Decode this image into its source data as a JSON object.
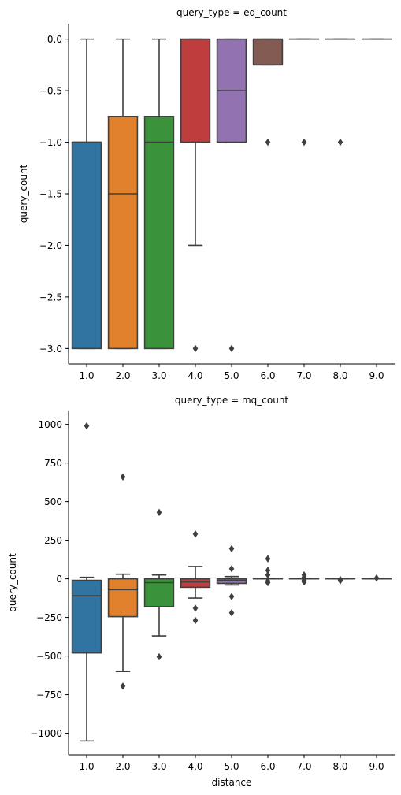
{
  "chart_data": [
    {
      "type": "box",
      "title": "query_type = eq_count",
      "xlabel": "",
      "ylabel": "query_count",
      "categories": [
        "1.0",
        "2.0",
        "3.0",
        "4.0",
        "5.0",
        "6.0",
        "7.0",
        "8.0",
        "9.0"
      ],
      "yticks": [
        0.0,
        -0.5,
        -1.0,
        -1.5,
        -2.0,
        -2.5,
        -3.0
      ],
      "ytick_labels": [
        "0.0",
        "−0.5",
        "−1.0",
        "−1.5",
        "−2.0",
        "−2.5",
        "−3.0"
      ],
      "ylim": [
        -3.15,
        0.15
      ],
      "grid": false,
      "boxes": [
        {
          "category": "1.0",
          "color": "#3274a1",
          "whisker_low": -3.0,
          "q1": -3.0,
          "median": -1.0,
          "q3": -1.0,
          "whisker_high": 0.0,
          "outliers": []
        },
        {
          "category": "2.0",
          "color": "#e1812c",
          "whisker_low": -3.0,
          "q1": -3.0,
          "median": -1.5,
          "q3": -0.75,
          "whisker_high": 0.0,
          "outliers": []
        },
        {
          "category": "3.0",
          "color": "#3a923a",
          "whisker_low": -3.0,
          "q1": -3.0,
          "median": -1.0,
          "q3": -0.75,
          "whisker_high": 0.0,
          "outliers": []
        },
        {
          "category": "4.0",
          "color": "#c03d3e",
          "whisker_low": -2.0,
          "q1": -1.0,
          "median": 0.0,
          "q3": 0.0,
          "whisker_high": 0.0,
          "outliers": [
            -3.0
          ]
        },
        {
          "category": "5.0",
          "color": "#9372b2",
          "whisker_low": -1.0,
          "q1": -1.0,
          "median": -0.5,
          "q3": 0.0,
          "whisker_high": 0.0,
          "outliers": [
            -3.0
          ]
        },
        {
          "category": "6.0",
          "color": "#845b53",
          "whisker_low": -0.25,
          "q1": -0.25,
          "median": 0.0,
          "q3": 0.0,
          "whisker_high": 0.0,
          "outliers": [
            -1.0
          ]
        },
        {
          "category": "7.0",
          "color": "#d684bd",
          "whisker_low": 0.0,
          "q1": 0.0,
          "median": 0.0,
          "q3": 0.0,
          "whisker_high": 0.0,
          "outliers": [
            -1.0
          ]
        },
        {
          "category": "8.0",
          "color": "#7f7f7f",
          "whisker_low": 0.0,
          "q1": 0.0,
          "median": 0.0,
          "q3": 0.0,
          "whisker_high": 0.0,
          "outliers": [
            -1.0
          ]
        },
        {
          "category": "9.0",
          "color": "#a9aa35",
          "whisker_low": 0.0,
          "q1": 0.0,
          "median": 0.0,
          "q3": 0.0,
          "whisker_high": 0.0,
          "outliers": []
        }
      ]
    },
    {
      "type": "box",
      "title": "query_type = mq_count",
      "xlabel": "distance",
      "ylabel": "query_count",
      "categories": [
        "1.0",
        "2.0",
        "3.0",
        "4.0",
        "5.0",
        "6.0",
        "7.0",
        "8.0",
        "9.0"
      ],
      "yticks": [
        1000,
        750,
        500,
        250,
        0,
        -250,
        -500,
        -750,
        -1000
      ],
      "ytick_labels": [
        "1000",
        "750",
        "500",
        "250",
        "0",
        "−250",
        "−500",
        "−750",
        "−1000"
      ],
      "ylim": [
        -1140,
        1090
      ],
      "grid": false,
      "boxes": [
        {
          "category": "1.0",
          "color": "#3274a1",
          "whisker_low": -1050,
          "q1": -480,
          "median": -110,
          "q3": -10,
          "whisker_high": 10,
          "outliers": [
            990
          ]
        },
        {
          "category": "2.0",
          "color": "#e1812c",
          "whisker_low": -600,
          "q1": -245,
          "median": -70,
          "q3": 0,
          "whisker_high": 30,
          "outliers": [
            660,
            -695
          ]
        },
        {
          "category": "3.0",
          "color": "#3a923a",
          "whisker_low": -370,
          "q1": -180,
          "median": -25,
          "q3": 0,
          "whisker_high": 25,
          "outliers": [
            430,
            -505
          ]
        },
        {
          "category": "4.0",
          "color": "#c03d3e",
          "whisker_low": -125,
          "q1": -55,
          "median": -20,
          "q3": 0,
          "whisker_high": 80,
          "outliers": [
            290,
            -190,
            -270
          ]
        },
        {
          "category": "5.0",
          "color": "#9372b2",
          "whisker_low": -40,
          "q1": -30,
          "median": -10,
          "q3": 0,
          "whisker_high": 15,
          "outliers": [
            195,
            65,
            -115,
            -220
          ]
        },
        {
          "category": "6.0",
          "color": "#845b53",
          "whisker_low": 0,
          "q1": 0,
          "median": 0,
          "q3": 0,
          "whisker_high": 0,
          "outliers": [
            130,
            55,
            25,
            -15,
            -25
          ]
        },
        {
          "category": "7.0",
          "color": "#d684bd",
          "whisker_low": 0,
          "q1": 0,
          "median": 0,
          "q3": 0,
          "whisker_high": 0,
          "outliers": [
            25,
            10,
            -10,
            -20
          ]
        },
        {
          "category": "8.0",
          "color": "#7f7f7f",
          "whisker_low": 0,
          "q1": 0,
          "median": 0,
          "q3": 0,
          "whisker_high": 0,
          "outliers": [
            -5,
            -12
          ]
        },
        {
          "category": "9.0",
          "color": "#a9aa35",
          "whisker_low": 0,
          "q1": 0,
          "median": 0,
          "q3": 0,
          "whisker_high": 0,
          "outliers": [
            5
          ]
        }
      ]
    }
  ]
}
